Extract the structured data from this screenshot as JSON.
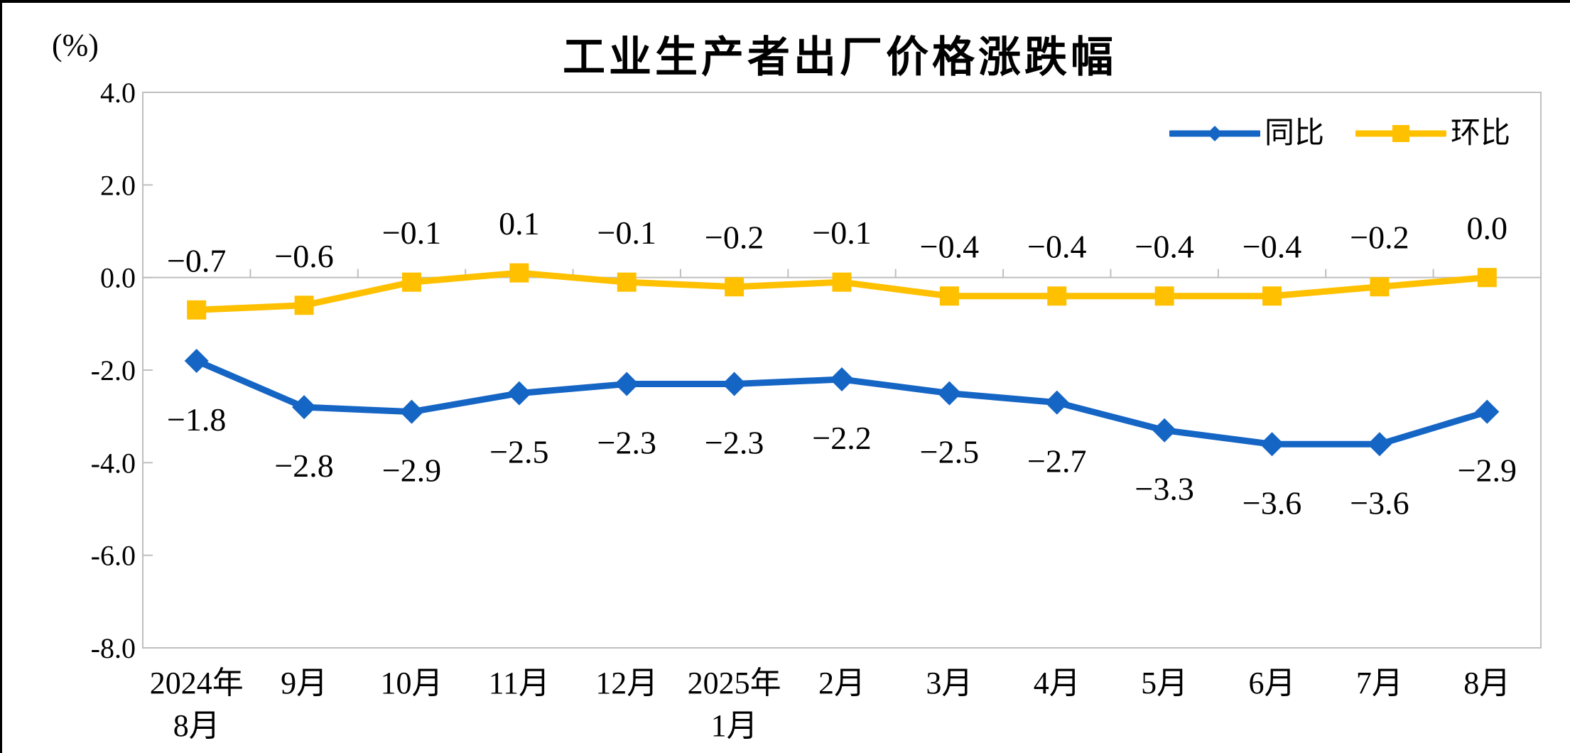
{
  "chart_data": {
    "type": "line",
    "title": "工业生产者出厂价格涨跌幅",
    "unit_label": "(%)",
    "legend_position": "top-right",
    "grid": false,
    "background": "#ffffff",
    "frame_border_color": "#000000",
    "axis_color": "#bfbfbf",
    "text_color": "#000000",
    "ylim": [
      -8.0,
      4.0
    ],
    "yticks": [
      4,
      2,
      0,
      -2,
      -4,
      -6,
      -8
    ],
    "ytick_labels": [
      "4.0",
      "2.0",
      "0.0",
      "-2.0",
      "-4.0",
      "-6.0",
      "-8.0"
    ],
    "categories": [
      "2024年\n8月",
      "9月",
      "10月",
      "11月",
      "12月",
      "2025年\n1月",
      "2月",
      "3月",
      "4月",
      "5月",
      "6月",
      "7月",
      "8月"
    ],
    "series": [
      {
        "id": "yoy",
        "name": "同比",
        "color": "#1565c5",
        "marker": "diamond",
        "label_position": "below",
        "values": [
          -1.8,
          -2.8,
          -2.9,
          -2.5,
          -2.3,
          -2.3,
          -2.2,
          -2.5,
          -2.7,
          -3.3,
          -3.6,
          -3.6,
          -2.9
        ]
      },
      {
        "id": "mom",
        "name": "环比",
        "color": "#ffc000",
        "marker": "square",
        "label_position": "above",
        "values": [
          -0.7,
          -0.6,
          -0.1,
          0.1,
          -0.1,
          -0.2,
          -0.1,
          -0.4,
          -0.4,
          -0.4,
          -0.4,
          -0.2,
          0.0
        ]
      }
    ]
  }
}
